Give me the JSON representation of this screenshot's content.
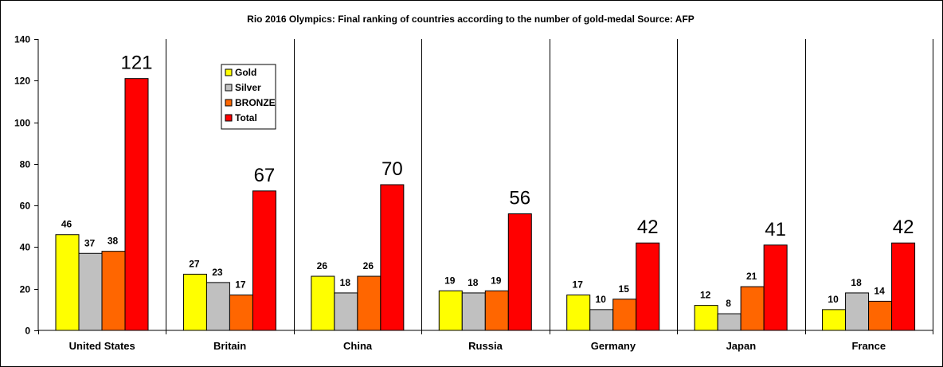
{
  "chart_data": {
    "type": "bar",
    "title": "Rio 2016 Olympics: Final ranking of countries according to the number of gold-medal Source: AFP",
    "xlabel": "",
    "ylabel": "",
    "ylim": [
      0,
      140
    ],
    "yticks": [
      0,
      20,
      40,
      60,
      80,
      100,
      120,
      140
    ],
    "grid": false,
    "category_dividers": true,
    "legend_position": "top-left",
    "categories": [
      "United States",
      "Britain",
      "China",
      "Russia",
      "Germany",
      "Japan",
      "France"
    ],
    "series": [
      {
        "name": "Gold",
        "color": "#ffff00",
        "values": [
          46,
          27,
          26,
          19,
          17,
          12,
          10
        ]
      },
      {
        "name": "Silver",
        "color": "#c0c0c0",
        "values": [
          37,
          23,
          18,
          18,
          10,
          8,
          18
        ]
      },
      {
        "name": "BRONZE",
        "color": "#ff6600",
        "values": [
          38,
          17,
          26,
          19,
          15,
          21,
          14
        ]
      },
      {
        "name": "Total",
        "color": "#ff0000",
        "values": [
          121,
          67,
          70,
          56,
          42,
          41,
          42
        ]
      }
    ]
  }
}
